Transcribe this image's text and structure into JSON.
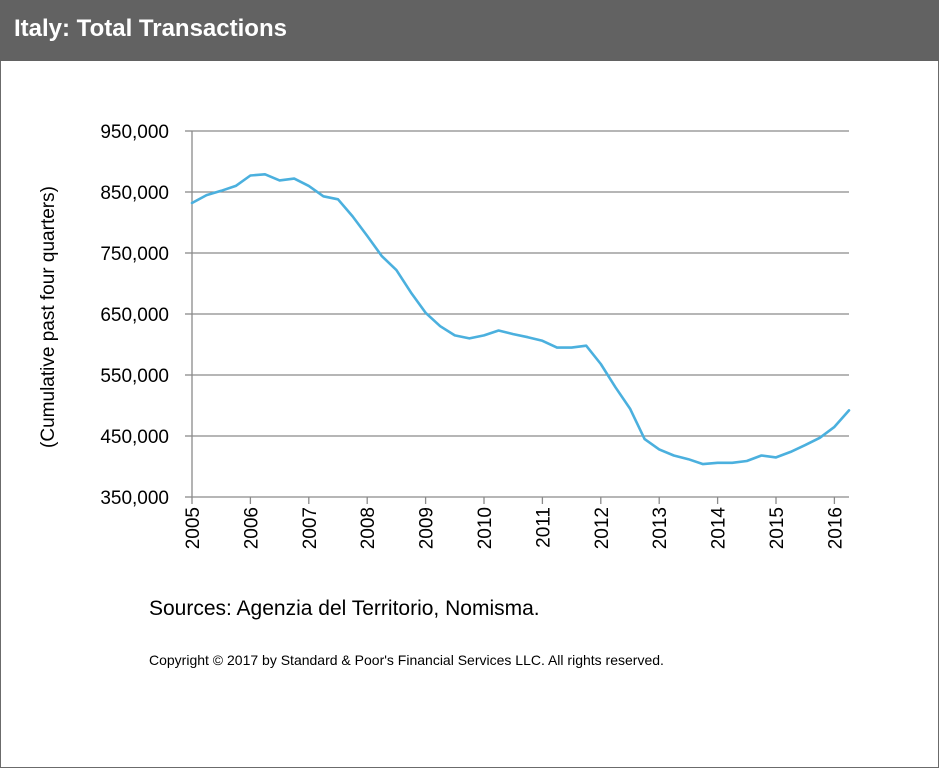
{
  "header": {
    "title": "Italy:  Total Transactions"
  },
  "chart_data": {
    "type": "line",
    "title": "Italy:  Total Transactions",
    "xlabel": "",
    "ylabel": "(Cumulative past four quarters)",
    "ylim": [
      350000,
      950000
    ],
    "xlim": [
      2005.0,
      2016.25
    ],
    "y_ticks": [
      350000,
      450000,
      550000,
      650000,
      750000,
      850000,
      950000
    ],
    "y_tick_labels": [
      "350,000",
      "450,000",
      "550,000",
      "650,000",
      "750,000",
      "850,000",
      "950,000"
    ],
    "x_ticks": [
      2005,
      2006,
      2007,
      2008,
      2009,
      2010,
      2011,
      2012,
      2013,
      2014,
      2015,
      2016
    ],
    "x_tick_labels": [
      "2005",
      "2006",
      "2007",
      "2008",
      "2009",
      "2010",
      "2011",
      "2012",
      "2013",
      "2014",
      "2015",
      "2016"
    ],
    "grid": true,
    "line_color": "#4bb0de",
    "series": [
      {
        "name": "Total Transactions",
        "x": [
          2005.0,
          2005.25,
          2005.5,
          2005.75,
          2006.0,
          2006.25,
          2006.5,
          2006.75,
          2007.0,
          2007.25,
          2007.5,
          2007.75,
          2008.0,
          2008.25,
          2008.5,
          2008.75,
          2009.0,
          2009.25,
          2009.5,
          2009.75,
          2010.0,
          2010.25,
          2010.5,
          2010.75,
          2011.0,
          2011.25,
          2011.5,
          2011.75,
          2012.0,
          2012.25,
          2012.5,
          2012.75,
          2013.0,
          2013.25,
          2013.5,
          2013.75,
          2014.0,
          2014.25,
          2014.5,
          2014.75,
          2015.0,
          2015.25,
          2015.5,
          2015.75,
          2016.0,
          2016.25
        ],
        "values": [
          832000,
          845000,
          852000,
          860000,
          877000,
          879000,
          869000,
          872000,
          860000,
          843000,
          838000,
          810000,
          778000,
          745000,
          722000,
          685000,
          652000,
          630000,
          615000,
          610000,
          615000,
          623000,
          617000,
          612000,
          606000,
          595000,
          595000,
          598000,
          568000,
          530000,
          495000,
          445000,
          428000,
          418000,
          412000,
          404000,
          406000,
          406000,
          409000,
          418000,
          415000,
          424000,
          435000,
          447000,
          465000,
          492000
        ]
      }
    ]
  },
  "footer": {
    "sources": "Sources: Agenzia del Territorio, Nomisma.",
    "copyright": "Copyright © 2017 by Standard & Poor's Financial Services LLC. All rights reserved."
  }
}
